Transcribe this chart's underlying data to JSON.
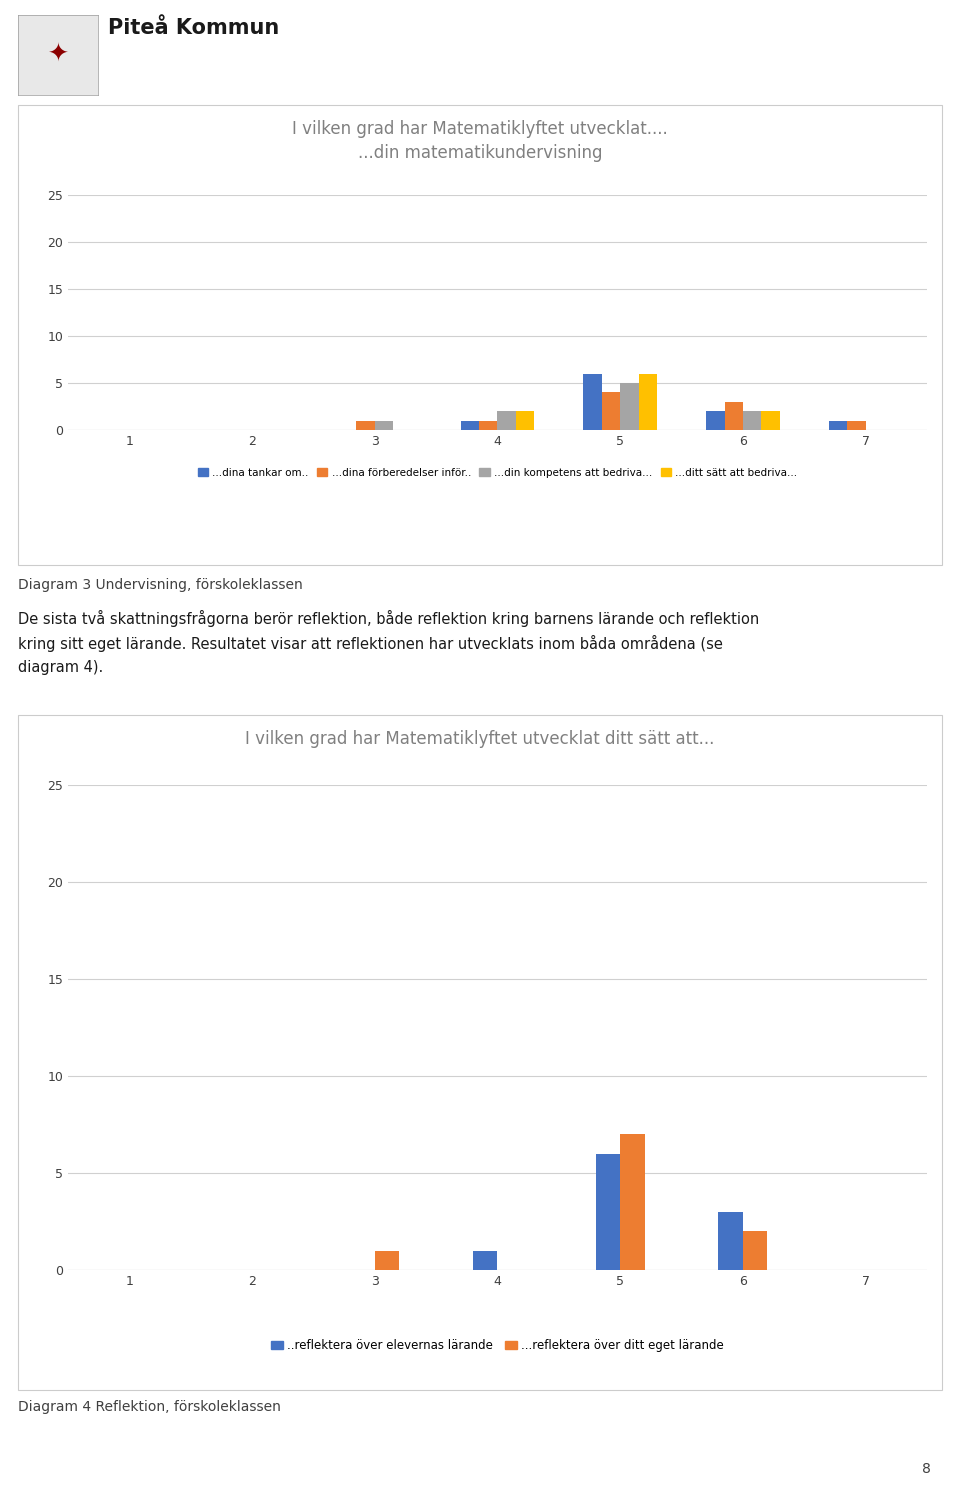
{
  "chart1": {
    "title": "I vilken grad har Matematiklyftet utvecklat....\n...din matematikundervisning",
    "xlim": [
      0.5,
      7.5
    ],
    "ylim": [
      0,
      25
    ],
    "yticks": [
      0,
      5,
      10,
      15,
      20,
      25
    ],
    "xticks": [
      1,
      2,
      3,
      4,
      5,
      6,
      7
    ],
    "series": [
      {
        "label": "...dina tankar om..",
        "color": "#4472C4",
        "values": {
          "1": 0,
          "2": 0,
          "3": 0,
          "4": 1,
          "5": 6,
          "6": 2,
          "7": 1
        }
      },
      {
        "label": "...dina förberedelser inför..",
        "color": "#ED7D31",
        "values": {
          "1": 0,
          "2": 0,
          "3": 1,
          "4": 1,
          "5": 4,
          "6": 3,
          "7": 1
        }
      },
      {
        "label": "...din kompetens att bedriva...",
        "color": "#A5A5A5",
        "values": {
          "1": 0,
          "2": 0,
          "3": 1,
          "4": 2,
          "5": 5,
          "6": 2,
          "7": 0
        }
      },
      {
        "label": "...ditt sätt att bedriva...",
        "color": "#FFC000",
        "values": {
          "1": 0,
          "2": 0,
          "3": 0,
          "4": 2,
          "5": 6,
          "6": 2,
          "7": 0
        }
      }
    ],
    "caption": "Diagram 3 Undervisning, förskoleklassen"
  },
  "text_body": "De sista två skattningsfrågorna berör reflektion, både reflektion kring barnens lärande och reflektion\nkring sitt eget lärande. Resultatet visar att reflektionen har utvecklats inom båda områdena (se\ndiagram 4).",
  "chart2": {
    "title": "I vilken grad har Matematiklyftet utvecklat ditt sätt att...",
    "xlim": [
      0.5,
      7.5
    ],
    "ylim": [
      0,
      25
    ],
    "yticks": [
      0,
      5,
      10,
      15,
      20,
      25
    ],
    "xticks": [
      1,
      2,
      3,
      4,
      5,
      6,
      7
    ],
    "series": [
      {
        "label": "..reflektera över elevernas lärande",
        "color": "#4472C4",
        "values": {
          "1": 0,
          "2": 0,
          "3": 0,
          "4": 1,
          "5": 6,
          "6": 3,
          "7": 0
        }
      },
      {
        "label": "...reflektera över ditt eget lärande",
        "color": "#ED7D31",
        "values": {
          "1": 0,
          "2": 0,
          "3": 1,
          "4": 0,
          "5": 7,
          "6": 2,
          "7": 0
        }
      }
    ],
    "caption": "Diagram 4 Reflektion, förskoleklassen"
  },
  "header_text": "Piteå Kommun",
  "page_number": "8",
  "bg_color": "#FFFFFF",
  "chart_bg": "#FFFFFF",
  "border_color": "#CCCCCC",
  "text_color": "#404040",
  "title_color": "#808080",
  "axis_color": "#D0D0D0",
  "label_fontsize": 9,
  "title_fontsize": 12,
  "caption_fontsize": 10,
  "body_fontsize": 10.5
}
